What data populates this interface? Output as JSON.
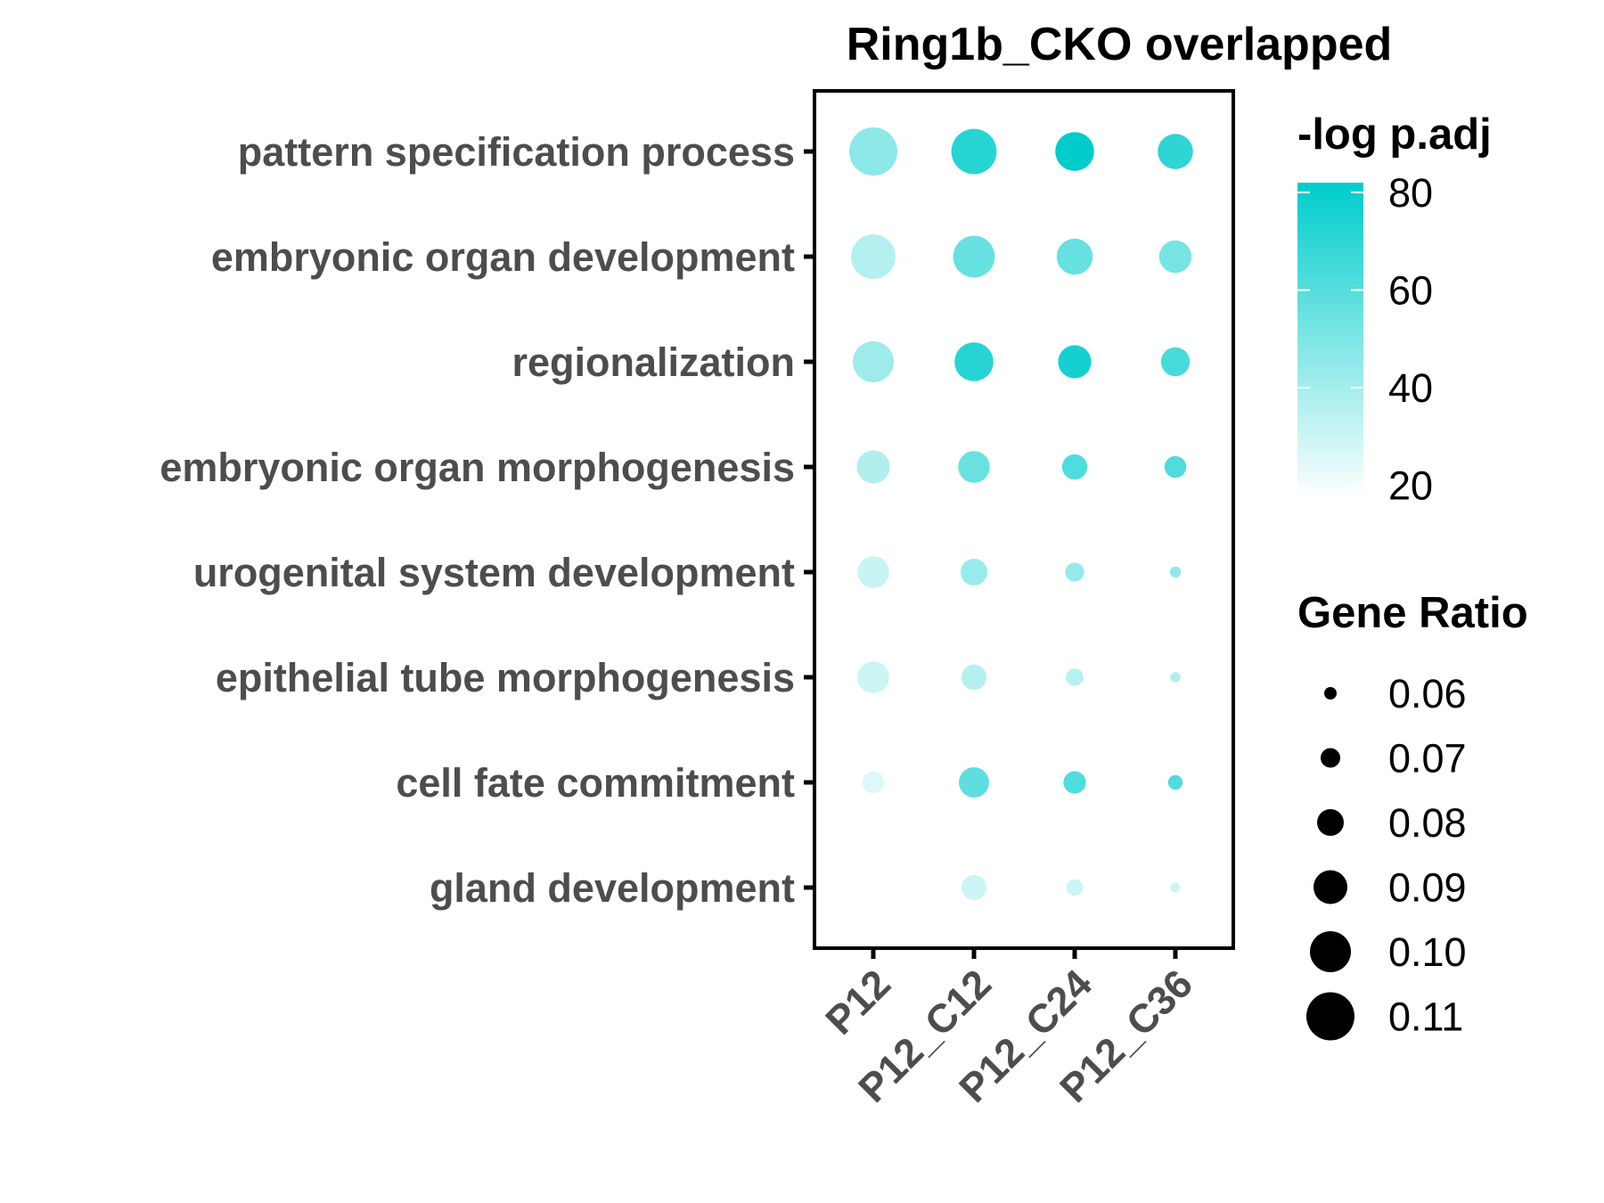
{
  "chart_data": {
    "type": "scatter",
    "title": "Ring1b_CKO overlapped",
    "x_categories": [
      "P12",
      "P12_C12",
      "P12_C24",
      "P12_C36"
    ],
    "y_categories": [
      "pattern specification process",
      "embryonic organ development",
      "regionalization",
      "embryonic organ morphogenesis",
      "urogenital system development",
      "epithelial tube morphogenesis",
      "cell fate commitment",
      "gland development"
    ],
    "points": [
      {
        "x": "P12",
        "y": "pattern specification process",
        "gene_ratio": 0.11,
        "neg_log_padj": 46
      },
      {
        "x": "P12_C12",
        "y": "pattern specification process",
        "gene_ratio": 0.106,
        "neg_log_padj": 72
      },
      {
        "x": "P12_C24",
        "y": "pattern specification process",
        "gene_ratio": 0.097,
        "neg_log_padj": 82
      },
      {
        "x": "P12_C36",
        "y": "pattern specification process",
        "gene_ratio": 0.092,
        "neg_log_padj": 70
      },
      {
        "x": "P12",
        "y": "embryonic organ development",
        "gene_ratio": 0.105,
        "neg_log_padj": 36
      },
      {
        "x": "P12_C12",
        "y": "embryonic organ development",
        "gene_ratio": 0.101,
        "neg_log_padj": 56
      },
      {
        "x": "P12_C24",
        "y": "embryonic organ development",
        "gene_ratio": 0.093,
        "neg_log_padj": 56
      },
      {
        "x": "P12_C36",
        "y": "embryonic organ development",
        "gene_ratio": 0.088,
        "neg_log_padj": 52
      },
      {
        "x": "P12",
        "y": "regionalization",
        "gene_ratio": 0.1,
        "neg_log_padj": 42
      },
      {
        "x": "P12_C12",
        "y": "regionalization",
        "gene_ratio": 0.097,
        "neg_log_padj": 72
      },
      {
        "x": "P12_C24",
        "y": "regionalization",
        "gene_ratio": 0.089,
        "neg_log_padj": 77
      },
      {
        "x": "P12_C36",
        "y": "regionalization",
        "gene_ratio": 0.083,
        "neg_log_padj": 64
      },
      {
        "x": "P12",
        "y": "embryonic organ morphogenesis",
        "gene_ratio": 0.089,
        "neg_log_padj": 37
      },
      {
        "x": "P12_C12",
        "y": "embryonic organ morphogenesis",
        "gene_ratio": 0.087,
        "neg_log_padj": 55
      },
      {
        "x": "P12_C24",
        "y": "embryonic organ morphogenesis",
        "gene_ratio": 0.078,
        "neg_log_padj": 62
      },
      {
        "x": "P12_C36",
        "y": "embryonic organ morphogenesis",
        "gene_ratio": 0.073,
        "neg_log_padj": 62
      },
      {
        "x": "P12",
        "y": "urogenital system development",
        "gene_ratio": 0.087,
        "neg_log_padj": 31
      },
      {
        "x": "P12_C12",
        "y": "urogenital system development",
        "gene_ratio": 0.08,
        "neg_log_padj": 43
      },
      {
        "x": "P12_C24",
        "y": "urogenital system development",
        "gene_ratio": 0.069,
        "neg_log_padj": 44
      },
      {
        "x": "P12_C36",
        "y": "urogenital system development",
        "gene_ratio": 0.058,
        "neg_log_padj": 45
      },
      {
        "x": "P12",
        "y": "epithelial tube morphogenesis",
        "gene_ratio": 0.087,
        "neg_log_padj": 30
      },
      {
        "x": "P12_C12",
        "y": "epithelial tube morphogenesis",
        "gene_ratio": 0.078,
        "neg_log_padj": 36
      },
      {
        "x": "P12_C24",
        "y": "epithelial tube morphogenesis",
        "gene_ratio": 0.067,
        "neg_log_padj": 35
      },
      {
        "x": "P12_C36",
        "y": "epithelial tube morphogenesis",
        "gene_ratio": 0.057,
        "neg_log_padj": 37
      },
      {
        "x": "P12",
        "y": "cell fate commitment",
        "gene_ratio": 0.073,
        "neg_log_padj": 26
      },
      {
        "x": "P12_C12",
        "y": "cell fate commitment",
        "gene_ratio": 0.085,
        "neg_log_padj": 58
      },
      {
        "x": "P12_C24",
        "y": "cell fate commitment",
        "gene_ratio": 0.074,
        "neg_log_padj": 62
      },
      {
        "x": "P12_C36",
        "y": "cell fate commitment",
        "gene_ratio": 0.063,
        "neg_log_padj": 62
      },
      {
        "x": "P12_C12",
        "y": "gland development",
        "gene_ratio": 0.078,
        "neg_log_padj": 30
      },
      {
        "x": "P12_C24",
        "y": "gland development",
        "gene_ratio": 0.066,
        "neg_log_padj": 30
      },
      {
        "x": "P12_C36",
        "y": "gland development",
        "gene_ratio": 0.056,
        "neg_log_padj": 30
      }
    ],
    "color_legend": {
      "title": "-log p.adj",
      "ticks": [
        20,
        40,
        60,
        80
      ],
      "range": [
        17,
        82
      ],
      "low_color": "#ffffff",
      "high_color": "#00cccc"
    },
    "size_legend": {
      "title": "Gene Ratio",
      "values": [
        0.06,
        0.07,
        0.08,
        0.09,
        0.1,
        0.11
      ],
      "labels": [
        "0.06",
        "0.07",
        "0.08",
        "0.09",
        "0.10",
        "0.11"
      ]
    },
    "grid": false,
    "legend_position": "right"
  }
}
